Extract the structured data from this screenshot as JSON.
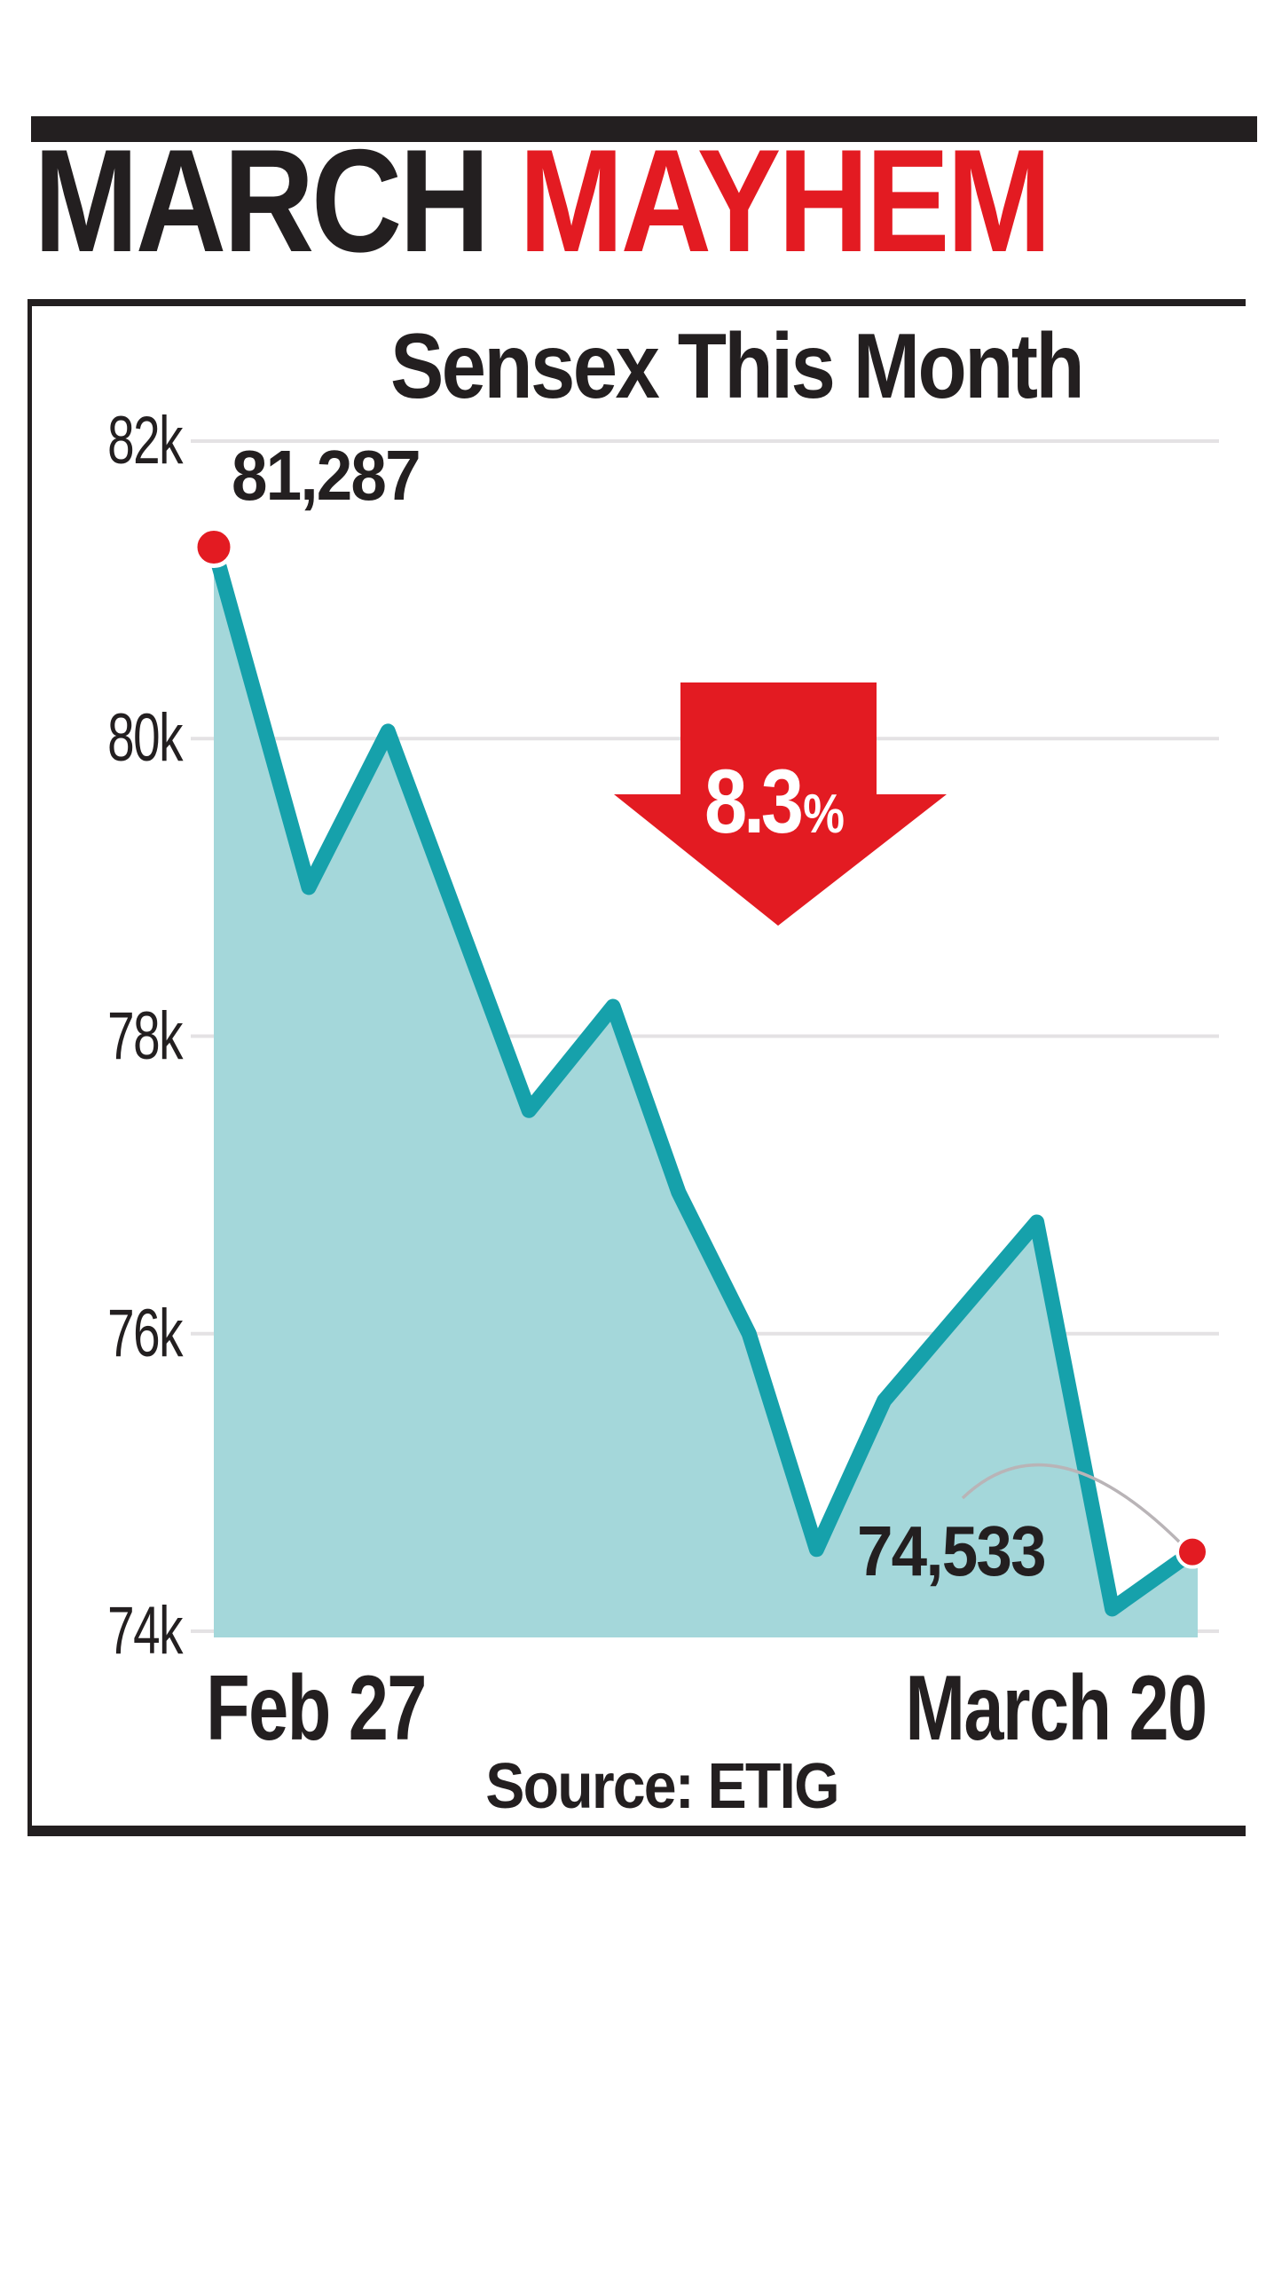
{
  "headline": {
    "word_black": "MARCH",
    "word_red": "MAYHEM"
  },
  "chart": {
    "drop_badge": {
      "value": "8.3",
      "unit": "%"
    }
  },
  "chart_data": {
    "type": "area",
    "title": "Sensex This Month",
    "source": "Source: ETIG",
    "x_start_label": "Feb 27",
    "x_end_label": "March 20",
    "start_label": "81,287",
    "end_label": "74,533",
    "start_value": 81287,
    "end_value": 74533,
    "change_percent": -8.3,
    "grid": "horizontal",
    "legend": "none",
    "ylim": [
      74000,
      82000
    ],
    "y_ticks": [
      {
        "label": "82k",
        "value": 82000
      },
      {
        "label": "80k",
        "value": 80000
      },
      {
        "label": "78k",
        "value": 78000
      },
      {
        "label": "76k",
        "value": 76000
      },
      {
        "label": "74k",
        "value": 74000
      }
    ],
    "points": [
      {
        "x_fraction": 0.0,
        "value": 81287
      },
      {
        "x_fraction": 0.097,
        "value": 79000
      },
      {
        "x_fraction": 0.178,
        "value": 80050
      },
      {
        "x_fraction": 0.322,
        "value": 77500
      },
      {
        "x_fraction": 0.408,
        "value": 78200
      },
      {
        "x_fraction": 0.475,
        "value": 76950
      },
      {
        "x_fraction": 0.547,
        "value": 76000
      },
      {
        "x_fraction": 0.616,
        "value": 74550
      },
      {
        "x_fraction": 0.685,
        "value": 75550
      },
      {
        "x_fraction": 0.841,
        "value": 76750
      },
      {
        "x_fraction": 0.918,
        "value": 74150
      },
      {
        "x_fraction": 1.0,
        "value": 74533
      }
    ]
  },
  "colors": {
    "ink": "#231f20",
    "red": "#e31b22",
    "teal_line": "#16a1ab",
    "teal_fill": "#a4d7da",
    "gridline": "#e4e2e4",
    "annotation_gray": "#b9b4b7"
  }
}
